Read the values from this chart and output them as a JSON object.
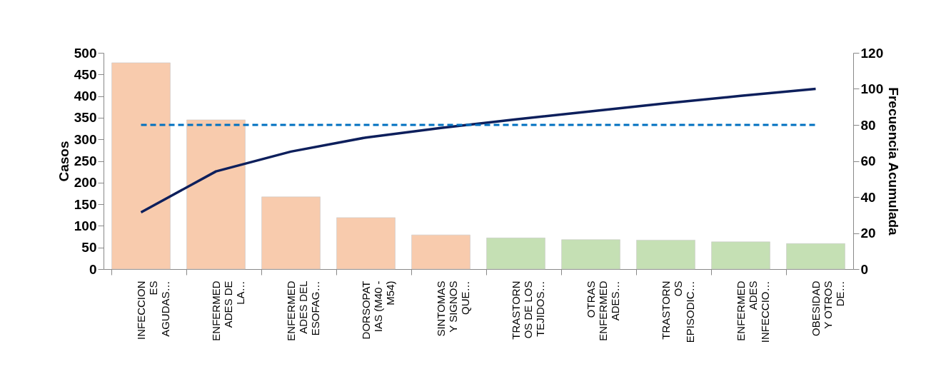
{
  "chart_data": {
    "type": "bar",
    "ylabel": "Casos",
    "y2label": "Frecuencia Acumulada",
    "categories": [
      "INFECCION\nES\nAGUDAS…",
      "ENFERMED\nADES DE\nLA…",
      "ENFERMED\nADES DEL\nESOFAG…",
      "DORSOPAT\nIAS (M40 -\nM54)",
      "SINTOMAS\nY SIGNOS\nQUE…",
      "TRASTORN\nOS DE LOS\nTEJIDOS…",
      "OTRAS\nENFERMED\nADES…",
      "TRASTORN\nOS\nEPISODIC…",
      "ENFERMED\nADES\nINFECCIO…",
      "OBESIDAD\nY OTROS\nDE…"
    ],
    "series": [
      {
        "colors": [
          "#f8cbad",
          "#f8cbad",
          "#f8cbad",
          "#f8cbad",
          "#f8cbad",
          "#c5e0b4",
          "#c5e0b4",
          "#c5e0b4",
          "#c5e0b4",
          "#c5e0b4"
        ],
        "values": [
          477,
          345,
          167,
          119,
          79,
          72,
          68,
          67,
          63,
          59
        ]
      },
      {
        "type": "line",
        "axis": "y2",
        "color": "#0d1f5c",
        "line_style": "solid",
        "values": [
          31.5,
          54.2,
          65.2,
          73.0,
          78.3,
          83.1,
          87.5,
          92.0,
          96.1,
          100
        ]
      }
    ],
    "ylim": [
      0,
      500
    ],
    "yticks": [
      0,
      50,
      100,
      150,
      200,
      250,
      300,
      350,
      400,
      450,
      500
    ],
    "y2lim": [
      0,
      120
    ],
    "y2ticks": [
      0,
      20,
      40,
      60,
      80,
      100,
      120
    ],
    "ref_lines": [
      {
        "axis": "y2",
        "value": 80,
        "color": "#0070c0",
        "line_style": "dashed"
      }
    ],
    "grid": false
  }
}
